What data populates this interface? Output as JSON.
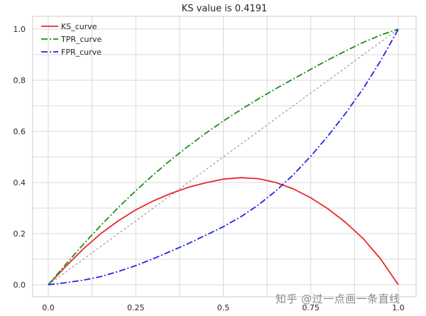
{
  "chart_data": {
    "type": "line",
    "title": "KS value is 0.4191",
    "xlabel": "",
    "ylabel": "",
    "xlim": [
      0,
      1
    ],
    "ylim": [
      0,
      1
    ],
    "x_ticks": [
      0.0,
      0.25,
      0.5,
      0.75,
      1.0
    ],
    "x_tick_labels": [
      "0.0",
      "0.25",
      "0.5",
      "0.75",
      "1.0"
    ],
    "y_ticks": [
      0.0,
      0.2,
      0.4,
      0.6,
      0.8,
      1.0
    ],
    "y_tick_labels": [
      "0.0",
      "0.2",
      "0.4",
      "0.6",
      "0.8",
      "1.0"
    ],
    "grid": true,
    "legend_position": "top-left",
    "x": [
      0.0,
      0.05,
      0.1,
      0.15,
      0.2,
      0.25,
      0.3,
      0.35,
      0.4,
      0.45,
      0.5,
      0.55,
      0.6,
      0.65,
      0.7,
      0.75,
      0.8,
      0.85,
      0.9,
      0.95,
      1.0
    ],
    "series": [
      {
        "name": "KS_curve",
        "color": "#e8282b",
        "style": "solid",
        "values": [
          0.0,
          0.072,
          0.14,
          0.2,
          0.25,
          0.293,
          0.328,
          0.357,
          0.381,
          0.399,
          0.413,
          0.419,
          0.415,
          0.4,
          0.375,
          0.34,
          0.296,
          0.243,
          0.18,
          0.1,
          0.0
        ]
      },
      {
        "name": "TPR_curve",
        "color": "#1e8c1e",
        "style": "dashdot",
        "values": [
          0.0,
          0.08,
          0.158,
          0.232,
          0.302,
          0.368,
          0.43,
          0.488,
          0.542,
          0.593,
          0.64,
          0.685,
          0.727,
          0.767,
          0.805,
          0.843,
          0.88,
          0.915,
          0.948,
          0.977,
          1.0
        ]
      },
      {
        "name": "FPR_curve",
        "color": "#2323e6",
        "style": "dashdot",
        "values": [
          0.0,
          0.008,
          0.018,
          0.032,
          0.052,
          0.075,
          0.102,
          0.131,
          0.161,
          0.194,
          0.227,
          0.266,
          0.312,
          0.367,
          0.43,
          0.503,
          0.584,
          0.672,
          0.768,
          0.877,
          1.0
        ]
      },
      {
        "name": "",
        "color": "#9a9a9a",
        "style": "dotted",
        "values": [
          0.0,
          0.05,
          0.1,
          0.15,
          0.2,
          0.25,
          0.3,
          0.35,
          0.4,
          0.45,
          0.5,
          0.55,
          0.6,
          0.65,
          0.7,
          0.75,
          0.8,
          0.85,
          0.9,
          0.95,
          1.0
        ]
      }
    ]
  },
  "watermark": "知乎 @过一点画一条直线"
}
